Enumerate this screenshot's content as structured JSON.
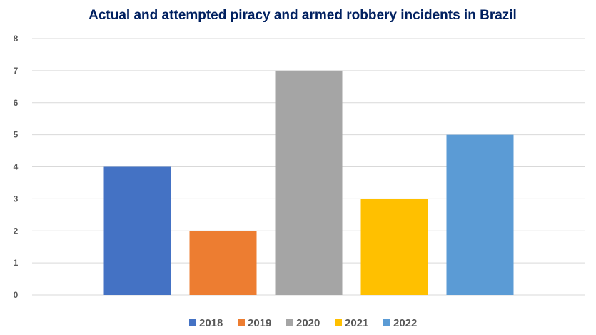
{
  "chart_data": {
    "type": "bar",
    "title": "Actual and attempted piracy and armed robbery incidents in Brazil",
    "xlabel": "",
    "ylabel": "",
    "ylim": [
      0,
      8
    ],
    "yticks": [
      "0",
      "1",
      "2",
      "3",
      "4",
      "5",
      "6",
      "7",
      "8"
    ],
    "grid": true,
    "legend_position": "bottom",
    "categories": [
      ""
    ],
    "series": [
      {
        "name": "2018",
        "values": [
          4
        ],
        "color": "#4472C4"
      },
      {
        "name": "2019",
        "values": [
          2
        ],
        "color": "#ED7D31"
      },
      {
        "name": "2020",
        "values": [
          7
        ],
        "color": "#A5A5A5"
      },
      {
        "name": "2021",
        "values": [
          3
        ],
        "color": "#FFC000"
      },
      {
        "name": "2022",
        "values": [
          5
        ],
        "color": "#5B9BD5"
      }
    ]
  }
}
